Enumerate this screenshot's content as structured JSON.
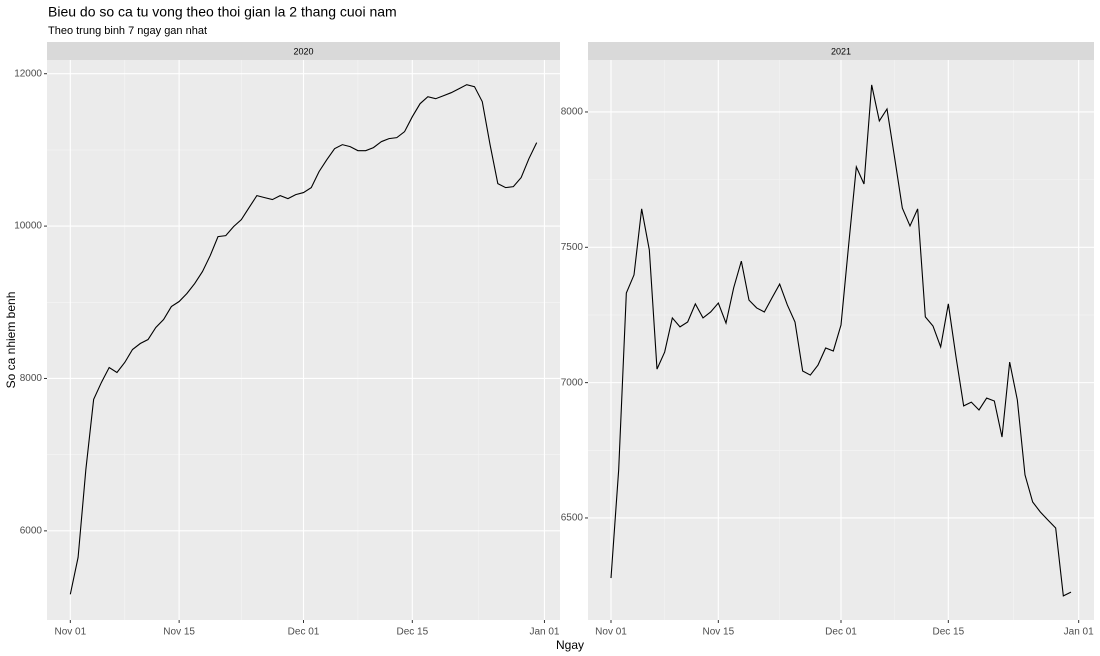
{
  "title": "Bieu do so ca tu vong theo thoi gian la 2 thang cuoi nam",
  "subtitle": "Theo trung binh 7 ngay gan nhat",
  "x_label": "Ngay",
  "y_label": "So ca nhiem benh",
  "chart_data": [
    {
      "type": "line",
      "facet": "2020",
      "color": "#000000",
      "grid": true,
      "x": [
        "2020-11-01",
        "2020-11-02",
        "2020-11-03",
        "2020-11-04",
        "2020-11-05",
        "2020-11-06",
        "2020-11-07",
        "2020-11-08",
        "2020-11-09",
        "2020-11-10",
        "2020-11-11",
        "2020-11-12",
        "2020-11-13",
        "2020-11-14",
        "2020-11-15",
        "2020-11-16",
        "2020-11-17",
        "2020-11-18",
        "2020-11-19",
        "2020-11-20",
        "2020-11-21",
        "2020-11-22",
        "2020-11-23",
        "2020-11-24",
        "2020-11-25",
        "2020-11-26",
        "2020-11-27",
        "2020-11-28",
        "2020-11-29",
        "2020-11-30",
        "2020-12-01",
        "2020-12-02",
        "2020-12-03",
        "2020-12-04",
        "2020-12-05",
        "2020-12-06",
        "2020-12-07",
        "2020-12-08",
        "2020-12-09",
        "2020-12-10",
        "2020-12-11",
        "2020-12-12",
        "2020-12-13",
        "2020-12-14",
        "2020-12-15",
        "2020-12-16",
        "2020-12-17",
        "2020-12-18",
        "2020-12-19",
        "2020-12-20",
        "2020-12-21",
        "2020-12-22",
        "2020-12-23",
        "2020-12-24",
        "2020-12-25",
        "2020-12-26",
        "2020-12-27",
        "2020-12-28",
        "2020-12-29",
        "2020-12-30",
        "2020-12-31"
      ],
      "values": [
        5167,
        5652,
        6806,
        7725,
        7948,
        8144,
        8079,
        8210,
        8380,
        8459,
        8511,
        8669,
        8774,
        8944,
        9010,
        9115,
        9246,
        9403,
        9613,
        9862,
        9875,
        9993,
        10085,
        10243,
        10400,
        10374,
        10348,
        10400,
        10361,
        10413,
        10440,
        10505,
        10715,
        10872,
        11016,
        11069,
        11043,
        10990,
        10990,
        11030,
        11108,
        11148,
        11161,
        11239,
        11436,
        11607,
        11698,
        11672,
        11711,
        11751,
        11803,
        11856,
        11830,
        11633,
        11069,
        10557,
        10505,
        10518,
        10636,
        10885,
        11095
      ],
      "xlim": [
        "2020-10-29",
        "2021-01-03"
      ],
      "xticks": [
        {
          "value": "2020-11-01",
          "label": "Nov 01"
        },
        {
          "value": "2020-11-15",
          "label": "Nov 15"
        },
        {
          "value": "2020-12-01",
          "label": "Dec 01"
        },
        {
          "value": "2020-12-15",
          "label": "Dec 15"
        },
        {
          "value": "2021-01-01",
          "label": "Jan 01"
        }
      ],
      "ylim": [
        4830,
        12180
      ],
      "yticks": [
        6000,
        8000,
        10000,
        12000
      ]
    },
    {
      "type": "line",
      "facet": "2021",
      "color": "#000000",
      "grid": true,
      "x": [
        "2021-11-01",
        "2021-11-02",
        "2021-11-03",
        "2021-11-04",
        "2021-11-05",
        "2021-11-06",
        "2021-11-07",
        "2021-11-08",
        "2021-11-09",
        "2021-11-10",
        "2021-11-11",
        "2021-11-12",
        "2021-11-13",
        "2021-11-14",
        "2021-11-15",
        "2021-11-16",
        "2021-11-17",
        "2021-11-18",
        "2021-11-19",
        "2021-11-20",
        "2021-11-21",
        "2021-11-22",
        "2021-11-23",
        "2021-11-24",
        "2021-11-25",
        "2021-11-26",
        "2021-11-27",
        "2021-11-28",
        "2021-11-29",
        "2021-11-30",
        "2021-12-01",
        "2021-12-02",
        "2021-12-03",
        "2021-12-04",
        "2021-12-05",
        "2021-12-06",
        "2021-12-07",
        "2021-12-08",
        "2021-12-09",
        "2021-12-10",
        "2021-12-11",
        "2021-12-12",
        "2021-12-13",
        "2021-12-14",
        "2021-12-15",
        "2021-12-16",
        "2021-12-17",
        "2021-12-18",
        "2021-12-19",
        "2021-12-20",
        "2021-12-21",
        "2021-12-22",
        "2021-12-23",
        "2021-12-24",
        "2021-12-25",
        "2021-12-26",
        "2021-12-27",
        "2021-12-28",
        "2021-12-29",
        "2021-12-30",
        "2021-12-31"
      ],
      "values": [
        6278,
        6677,
        7331,
        7398,
        7642,
        7490,
        7050,
        7113,
        7239,
        7206,
        7224,
        7291,
        7239,
        7261,
        7294,
        7220,
        7350,
        7449,
        7305,
        7276,
        7261,
        7313,
        7364,
        7287,
        7224,
        7043,
        7028,
        7065,
        7128,
        7117,
        7213,
        7509,
        7797,
        7734,
        8100,
        7967,
        8011,
        7830,
        7645,
        7579,
        7642,
        7243,
        7209,
        7132,
        7291,
        7095,
        6914,
        6928,
        6899,
        6943,
        6932,
        6799,
        7076,
        6936,
        6659,
        6559,
        6522,
        6492,
        6463,
        6212,
        6226
      ],
      "xlim": [
        "2021-10-29",
        "2022-01-03"
      ],
      "xticks": [
        {
          "value": "2021-11-01",
          "label": "Nov 01"
        },
        {
          "value": "2021-11-15",
          "label": "Nov 15"
        },
        {
          "value": "2021-12-01",
          "label": "Dec 01"
        },
        {
          "value": "2021-12-15",
          "label": "Dec 15"
        },
        {
          "value": "2022-01-01",
          "label": "Jan 01"
        }
      ],
      "ylim": [
        6123,
        8192
      ],
      "yticks": [
        6500,
        7000,
        7500,
        8000
      ]
    }
  ]
}
